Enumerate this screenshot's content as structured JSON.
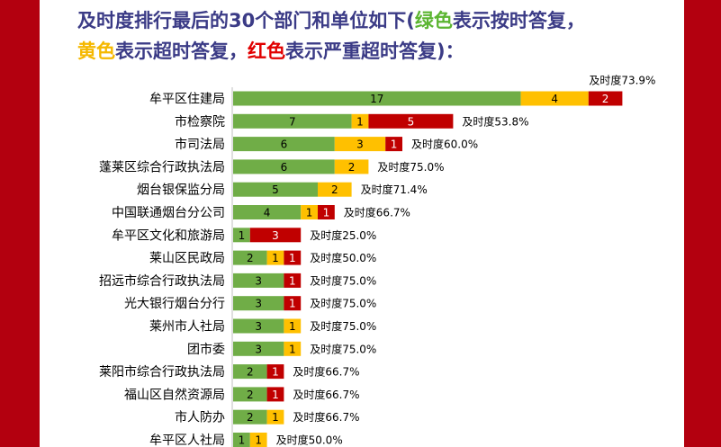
{
  "title": {
    "line1_prefix": "及时度排行最后的30个部门和单位如下(",
    "green_word": "绿色",
    "line1_suffix": "表示按时答复，",
    "yellow_word": "黄色",
    "line2_mid": "表示超时答复，",
    "red_word": "红色",
    "line2_suffix": "表示严重超时答复)："
  },
  "colors": {
    "on_time": "#70ad47",
    "overtime": "#ffc000",
    "severe": "#c00000",
    "frame": "#b3000f",
    "title": "#3b3b86"
  },
  "chart_data": {
    "type": "bar",
    "orientation": "horizontal",
    "stacked": true,
    "categories": [
      "牟平区住建局",
      "市检察院",
      "市司法局",
      "蓬莱区综合行政执法局",
      "烟台银保监分局",
      "中国联通烟台分公司",
      "牟平区文化和旅游局",
      "莱山区民政局",
      "招远市综合行政执法局",
      "光大银行烟台分行",
      "莱州市人社局",
      "团市委",
      "莱阳市综合行政执法局",
      "福山区自然资源局",
      "市人防办",
      "牟平区人社局"
    ],
    "series": [
      {
        "key": "on_time",
        "values": [
          17,
          7,
          6,
          6,
          5,
          4,
          1,
          2,
          3,
          3,
          3,
          3,
          2,
          2,
          2,
          1
        ]
      },
      {
        "key": "overtime",
        "values": [
          4,
          1,
          3,
          2,
          2,
          1,
          0,
          1,
          0,
          0,
          1,
          1,
          0,
          0,
          1,
          1
        ]
      },
      {
        "key": "severe",
        "values": [
          2,
          5,
          1,
          0,
          0,
          1,
          3,
          1,
          1,
          1,
          0,
          0,
          1,
          1,
          0,
          0
        ]
      }
    ],
    "annotations": [
      "及时度73.9%",
      "及时度53.8%",
      "及时度60.0%",
      "及时度75.0%",
      "及时度71.4%",
      "及时度66.7%",
      "及时度25.0%",
      "及时度50.0%",
      "及时度75.0%",
      "及时度75.0%",
      "及时度75.0%",
      "及时度75.0%",
      "及时度66.7%",
      "及时度66.7%",
      "及时度66.7%",
      "及时度50.0%"
    ],
    "grid": false,
    "legend": "none"
  }
}
